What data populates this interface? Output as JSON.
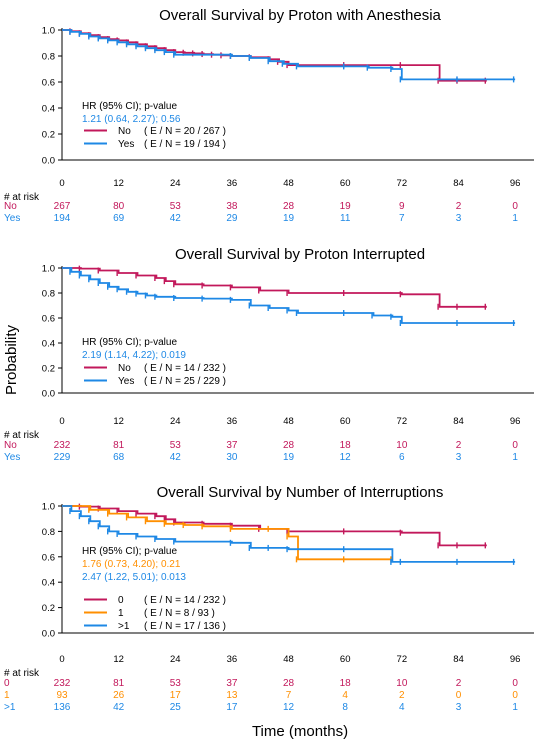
{
  "figure": {
    "ylabel": "Probability",
    "xlabel": "Time (months)",
    "at_risk_label": "# at risk",
    "hr_header": "HR (95% CI); p-value"
  },
  "colors": {
    "no": "#c2185b",
    "yes": "#1e88e5",
    "one": "#ff8f00",
    "grid": "#000000"
  },
  "chart_data": [
    {
      "type": "line",
      "title": "Overall Survival by Proton with Anesthesia",
      "xlabel": "",
      "ylabel": "",
      "xlim": [
        0,
        100
      ],
      "ylim": [
        0,
        1
      ],
      "xticks": [
        "0",
        "12",
        "24",
        "36",
        "48",
        "60",
        "72",
        "84",
        "96"
      ],
      "yticks": [
        "0.0",
        "0.2",
        "0.4",
        "0.6",
        "0.8",
        "1.0"
      ],
      "hr": [
        {
          "text": "1.21 (0.64, 2.27); 0.56",
          "color": "#1e88e5"
        }
      ],
      "series": [
        {
          "key": "no",
          "name": "No",
          "legend": "( E / N = 20 / 267 )",
          "color": "#c2185b",
          "x": [
            0,
            2,
            4,
            6,
            8,
            10,
            12,
            14,
            16,
            18,
            20,
            22,
            24,
            26,
            28,
            30,
            32,
            34,
            36,
            40,
            44,
            46,
            48,
            60,
            72,
            80,
            84,
            90
          ],
          "y": [
            1,
            0.99,
            0.975,
            0.96,
            0.945,
            0.93,
            0.92,
            0.905,
            0.89,
            0.875,
            0.86,
            0.845,
            0.83,
            0.825,
            0.82,
            0.815,
            0.81,
            0.805,
            0.8,
            0.79,
            0.775,
            0.755,
            0.73,
            0.73,
            0.73,
            0.61,
            0.61,
            0.61
          ],
          "risk": [
            "267",
            "80",
            "53",
            "38",
            "28",
            "19",
            "9",
            "2",
            "0"
          ]
        },
        {
          "key": "yes",
          "name": "Yes",
          "legend": "( E / N = 19 / 194 )",
          "color": "#1e88e5",
          "x": [
            0,
            2,
            4,
            6,
            8,
            10,
            12,
            14,
            16,
            18,
            20,
            22,
            24,
            36,
            40,
            44,
            47,
            50,
            60,
            65,
            70,
            72,
            84,
            96
          ],
          "y": [
            1,
            0.985,
            0.97,
            0.95,
            0.935,
            0.92,
            0.905,
            0.89,
            0.875,
            0.86,
            0.845,
            0.83,
            0.81,
            0.8,
            0.785,
            0.76,
            0.74,
            0.72,
            0.72,
            0.71,
            0.7,
            0.62,
            0.62,
            0.62
          ],
          "risk": [
            "194",
            "69",
            "42",
            "29",
            "19",
            "11",
            "7",
            "3",
            "1"
          ]
        }
      ],
      "risk_labels": [
        "No",
        "Yes"
      ]
    },
    {
      "type": "line",
      "title": "Overall Survival by Proton Interrupted",
      "xlabel": "",
      "ylabel": "",
      "xlim": [
        0,
        100
      ],
      "ylim": [
        0,
        1
      ],
      "xticks": [
        "0",
        "12",
        "24",
        "36",
        "48",
        "60",
        "72",
        "84",
        "96"
      ],
      "yticks": [
        "0.0",
        "0.2",
        "0.4",
        "0.6",
        "0.8",
        "1.0"
      ],
      "hr": [
        {
          "text": "2.19 (1.14, 4.22); 0.019",
          "color": "#1e88e5"
        }
      ],
      "series": [
        {
          "key": "no",
          "name": "No",
          "legend": "( E / N = 14 / 232 )",
          "color": "#c2185b",
          "x": [
            0,
            4,
            8,
            12,
            16,
            20,
            22,
            24,
            30,
            36,
            42,
            48,
            60,
            72,
            80,
            84,
            90
          ],
          "y": [
            1,
            0.995,
            0.98,
            0.96,
            0.94,
            0.92,
            0.895,
            0.87,
            0.86,
            0.845,
            0.82,
            0.8,
            0.8,
            0.79,
            0.69,
            0.69,
            0.69
          ],
          "risk": [
            "232",
            "81",
            "53",
            "37",
            "28",
            "18",
            "10",
            "2",
            "0"
          ]
        },
        {
          "key": "yes",
          "name": "Yes",
          "legend": "( E / N = 25 / 229 )",
          "color": "#1e88e5",
          "x": [
            0,
            2,
            4,
            6,
            8,
            10,
            12,
            14,
            16,
            18,
            20,
            24,
            30,
            36,
            40,
            44,
            48,
            50,
            60,
            66,
            70,
            72,
            84,
            96
          ],
          "y": [
            1,
            0.97,
            0.94,
            0.91,
            0.88,
            0.85,
            0.83,
            0.81,
            0.795,
            0.78,
            0.77,
            0.76,
            0.755,
            0.745,
            0.7,
            0.68,
            0.66,
            0.64,
            0.64,
            0.62,
            0.61,
            0.56,
            0.56,
            0.56
          ],
          "risk": [
            "229",
            "68",
            "42",
            "30",
            "19",
            "12",
            "6",
            "3",
            "1"
          ]
        }
      ],
      "risk_labels": [
        "No",
        "Yes"
      ]
    },
    {
      "type": "line",
      "title": "Overall Survival by Number of Interruptions",
      "xlabel": "",
      "ylabel": "",
      "xlim": [
        0,
        100
      ],
      "ylim": [
        0,
        1
      ],
      "xticks": [
        "0",
        "12",
        "24",
        "36",
        "48",
        "60",
        "72",
        "84",
        "96"
      ],
      "yticks": [
        "0.0",
        "0.2",
        "0.4",
        "0.6",
        "0.8",
        "1.0"
      ],
      "hr": [
        {
          "text": "1.76 (0.73, 4.20); 0.21",
          "color": "#ff8f00"
        },
        {
          "text": "2.47 (1.22, 5.01); 0.013",
          "color": "#1e88e5"
        }
      ],
      "series": [
        {
          "key": "no",
          "name": "0",
          "legend": "( E / N = 14 / 232 )",
          "color": "#c2185b",
          "x": [
            0,
            4,
            8,
            12,
            16,
            20,
            22,
            24,
            30,
            36,
            42,
            48,
            60,
            72,
            80,
            84,
            90
          ],
          "y": [
            1,
            0.995,
            0.98,
            0.96,
            0.94,
            0.92,
            0.895,
            0.87,
            0.86,
            0.845,
            0.82,
            0.8,
            0.8,
            0.79,
            0.69,
            0.69,
            0.69
          ],
          "risk": [
            "232",
            "81",
            "53",
            "37",
            "28",
            "18",
            "10",
            "2",
            "0"
          ]
        },
        {
          "key": "one",
          "name": "1",
          "legend": "( E / N = 8 / 93 )",
          "color": "#ff8f00",
          "x": [
            0,
            6,
            10,
            14,
            18,
            22,
            26,
            30,
            36,
            44,
            48,
            50,
            60,
            70
          ],
          "y": [
            1,
            0.97,
            0.94,
            0.91,
            0.88,
            0.86,
            0.85,
            0.84,
            0.82,
            0.82,
            0.76,
            0.58,
            0.58,
            0.58
          ],
          "risk": [
            "93",
            "26",
            "17",
            "13",
            "7",
            "4",
            "2",
            "0",
            "0"
          ]
        },
        {
          "key": "yes",
          "name": ">1",
          "legend": "( E / N = 17 / 136 )",
          "color": "#1e88e5",
          "x": [
            0,
            2,
            4,
            6,
            8,
            10,
            12,
            16,
            20,
            24,
            36,
            40,
            44,
            48,
            60,
            70,
            72,
            84,
            96
          ],
          "y": [
            1,
            0.96,
            0.92,
            0.88,
            0.84,
            0.8,
            0.78,
            0.76,
            0.74,
            0.72,
            0.71,
            0.67,
            0.67,
            0.66,
            0.66,
            0.56,
            0.56,
            0.56,
            0.56
          ],
          "risk": [
            "136",
            "42",
            "25",
            "17",
            "12",
            "8",
            "4",
            "3",
            "1"
          ]
        }
      ],
      "risk_labels": [
        "0",
        "1",
        ">1"
      ]
    }
  ]
}
